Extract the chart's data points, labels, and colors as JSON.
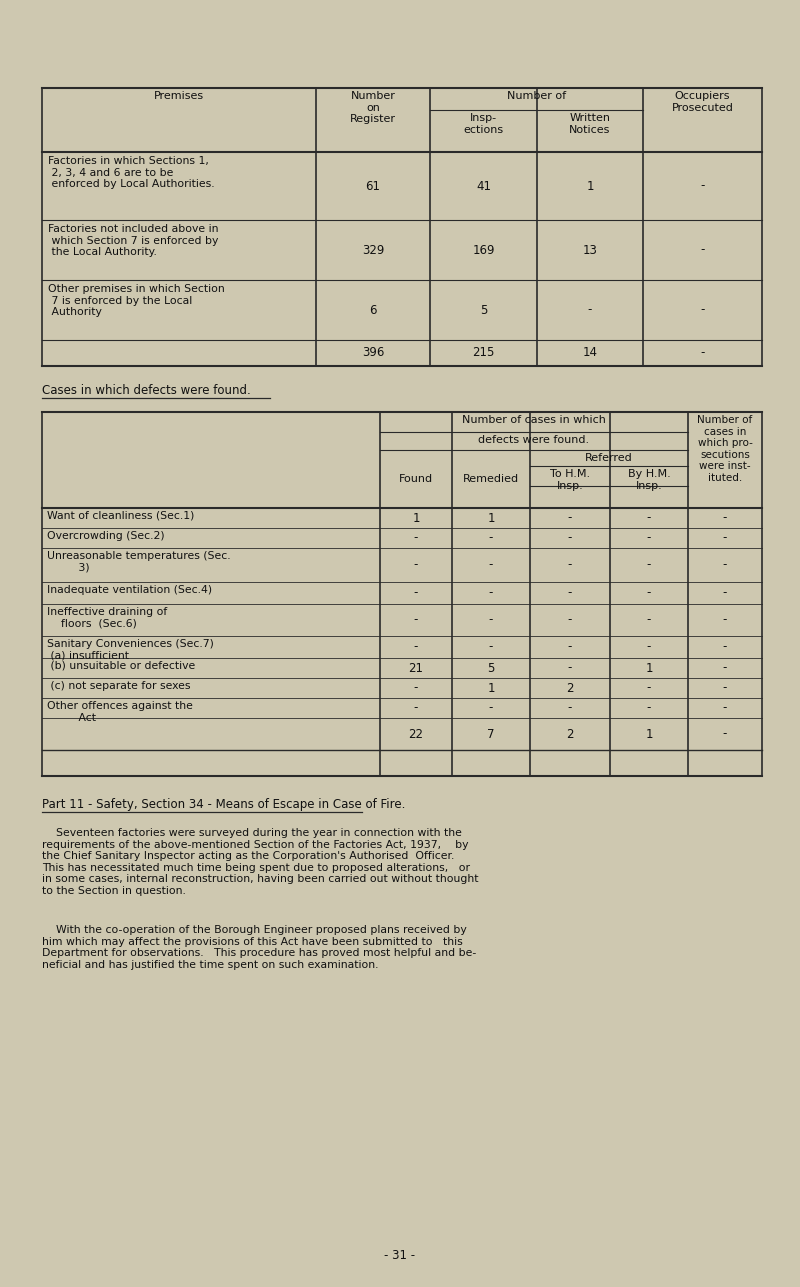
{
  "bg_color": "#cec8b0",
  "text_color": "#111111",
  "t1_rows": [
    [
      "Factories in which Sections 1,\n 2, 3, 4 and 6 are to be\n enforced by Local Authorities.",
      "61",
      "41",
      "1",
      "-"
    ],
    [
      "Factories not included above in\n which Section 7 is enforced by\n the Local Authority.",
      "329",
      "169",
      "13",
      "-"
    ],
    [
      "Other premises in which Section\n 7 is enforced by the Local\n Authority",
      "6",
      "5",
      "-",
      "-"
    ],
    [
      "",
      "396",
      "215",
      "14",
      "-"
    ]
  ],
  "section_label": "Cases in which defects were found.",
  "t2_rows": [
    [
      "Want of cleanliness (Sec.1)",
      "1",
      "1",
      "-",
      "-",
      "-"
    ],
    [
      "Overcrowding (Sec.2)",
      "-",
      "-",
      "-",
      "-",
      "-"
    ],
    [
      "Unreasonable temperatures (Sec.\n         3)",
      "-",
      "-",
      "-",
      "-",
      "-"
    ],
    [
      "Inadequate ventilation (Sec.4)",
      "-",
      "-",
      "-",
      "-",
      "-"
    ],
    [
      "Ineffective draining of\n    floors  (Sec.6)",
      "-",
      "-",
      "-",
      "-",
      "-"
    ],
    [
      "Sanitary Conveniences (Sec.7)\n (a) insufficient",
      "-",
      "-",
      "-",
      "-",
      "-"
    ],
    [
      " (b) unsuitable or defective",
      "21",
      "5",
      "-",
      "1",
      "-"
    ],
    [
      " (c) not separate for sexes",
      "-",
      "1",
      "2",
      "-",
      "-"
    ],
    [
      "Other offences against the\n         Act",
      "-",
      "-",
      "-",
      "-",
      "-"
    ],
    [
      "",
      "22",
      "7",
      "2",
      "1",
      "-"
    ]
  ],
  "part2_title": "Part 11 - Safety, Section 34 - Means of Escape in Case of Fire.",
  "para1": "    Seventeen factories were surveyed during the year in connection with the\nrequirements of the above-mentioned Section of the Factories Act, 1937,    by\nthe Chief Sanitary Inspector acting as the Corporation's Authorised  Officer.\nThis has necessitated much time being spent due to proposed alterations,   or\nin some cases, internal reconstruction, having been carried out without thought\nto the Section in question.",
  "para2": "    With the co-operation of the Borough Engineer proposed plans received by\nhim which may affect the provisions of this Act have been submitted to   this\nDepartment for observations.   This procedure has proved most helpful and be-\nneficial and has justified the time spent on such examination.",
  "page_number": "- 31 -"
}
